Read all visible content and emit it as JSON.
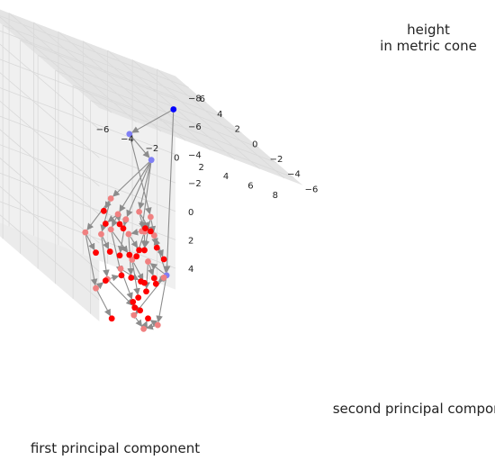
{
  "chart_data": {
    "type": "scatter",
    "projection": "3d",
    "title": "",
    "xlabel": "first principal component",
    "ylabel": "second principal component",
    "zlabel_lines": [
      "height",
      "in metric cone"
    ],
    "xlim": [
      -7,
      9.5
    ],
    "ylim": [
      -7,
      7.5
    ],
    "zlim": [
      5.5,
      -9.5
    ],
    "xticks": [
      -6,
      -4,
      -2,
      0,
      2,
      4,
      6,
      8
    ],
    "yticks": [
      -6,
      -4,
      -2,
      0,
      2,
      4,
      6
    ],
    "zticks": [
      -8,
      -6,
      -4,
      -2,
      0,
      2,
      4
    ],
    "grid": true,
    "colors": {
      "level_top": "#0000ff",
      "level_high": "#7f7ff5",
      "level_mid": "#f08080",
      "level_low": "#ff0000",
      "arrow": "#8c8c8c",
      "pane": "#f2f2f2",
      "grid": "#d9d9d9"
    },
    "nodes": [
      {
        "id": "n0",
        "x": 7.2,
        "y": 4.5,
        "z": -8.0,
        "level": "top"
      },
      {
        "id": "n1",
        "x": -1.0,
        "y": -2.0,
        "z": -7.0,
        "level": "high"
      },
      {
        "id": "n2",
        "x": -1.0,
        "y": -4.5,
        "z": -6.5,
        "level": "high"
      },
      {
        "id": "n3",
        "x": 7.0,
        "y": 5.0,
        "z": 4.0,
        "level": "high"
      },
      {
        "id": "n4",
        "x": -5.0,
        "y": -5.5,
        "z": -3.0,
        "level": "mid"
      },
      {
        "id": "n5",
        "x": -3.0,
        "y": -3.5,
        "z": -1.5,
        "level": "mid"
      },
      {
        "id": "n6",
        "x": -2.0,
        "y": -3.0,
        "z": -1.2,
        "level": "mid"
      },
      {
        "id": "n7",
        "x": 0.0,
        "y": -2.0,
        "z": -0.5,
        "level": "mid"
      },
      {
        "id": "n8",
        "x": 0.5,
        "y": -1.0,
        "z": -1.5,
        "level": "mid"
      },
      {
        "id": "n9",
        "x": 2.5,
        "y": 0.5,
        "z": -1.0,
        "level": "mid"
      },
      {
        "id": "n10",
        "x": -6.0,
        "y": -4.0,
        "z": 0.5,
        "level": "mid"
      },
      {
        "id": "n11",
        "x": -4.0,
        "y": -3.0,
        "z": 0.5,
        "level": "mid"
      },
      {
        "id": "n12",
        "x": -2.5,
        "y": -2.0,
        "z": 0.2,
        "level": "mid"
      },
      {
        "id": "n13",
        "x": 0.0,
        "y": -0.5,
        "z": 0.5,
        "level": "mid"
      },
      {
        "id": "n14",
        "x": 2.0,
        "y": 0.5,
        "z": 0.2,
        "level": "mid"
      },
      {
        "id": "n15",
        "x": 3.5,
        "y": 1.5,
        "z": 0.5,
        "level": "mid"
      },
      {
        "id": "n16",
        "x": -5.5,
        "y": -4.5,
        "z": 4.0,
        "level": "mid"
      },
      {
        "id": "n17",
        "x": -3.5,
        "y": -3.0,
        "z": 3.5,
        "level": "mid"
      },
      {
        "id": "n18",
        "x": -1.0,
        "y": -1.0,
        "z": 3.0,
        "level": "mid"
      },
      {
        "id": "n19",
        "x": 1.0,
        "y": 0.5,
        "z": 2.5,
        "level": "mid"
      },
      {
        "id": "n20",
        "x": 3.0,
        "y": 1.5,
        "z": 2.5,
        "level": "mid"
      },
      {
        "id": "n21",
        "x": 5.0,
        "y": 2.5,
        "z": 3.5,
        "level": "mid"
      },
      {
        "id": "n22",
        "x": 1.5,
        "y": 1.0,
        "z": 6.5,
        "level": "mid"
      },
      {
        "id": "n23",
        "x": 4.5,
        "y": 2.5,
        "z": 7.0,
        "level": "mid"
      },
      {
        "id": "n24",
        "x": 3.0,
        "y": 2.0,
        "z": 7.5,
        "level": "mid"
      },
      {
        "id": "n25",
        "x": -4.5,
        "y": -4.0,
        "z": -1.5,
        "level": "low"
      },
      {
        "id": "n26",
        "x": -4.0,
        "y": -3.5,
        "z": -0.5,
        "level": "low"
      },
      {
        "id": "n27",
        "x": -2.5,
        "y": -3.0,
        "z": -0.7,
        "level": "low"
      },
      {
        "id": "n28",
        "x": -1.5,
        "y": -2.0,
        "z": -0.2,
        "level": "low"
      },
      {
        "id": "n29",
        "x": 1.0,
        "y": -1.0,
        "z": -0.5,
        "level": "low"
      },
      {
        "id": "n30",
        "x": 2.0,
        "y": -0.2,
        "z": -0.2,
        "level": "low"
      },
      {
        "id": "n31",
        "x": -5.5,
        "y": -4.5,
        "z": 1.5,
        "level": "low"
      },
      {
        "id": "n32",
        "x": -4.0,
        "y": -4.0,
        "z": 1.2,
        "level": "low"
      },
      {
        "id": "n33",
        "x": -2.5,
        "y": -3.0,
        "z": 1.5,
        "level": "low"
      },
      {
        "id": "n34",
        "x": -1.0,
        "y": -2.0,
        "z": 1.5,
        "level": "low"
      },
      {
        "id": "n35",
        "x": 0.5,
        "y": -1.0,
        "z": 1.2,
        "level": "low"
      },
      {
        "id": "n36",
        "x": 2.0,
        "y": 0.5,
        "z": 1.5,
        "level": "low"
      },
      {
        "id": "n37",
        "x": 3.5,
        "y": 1.2,
        "z": 1.2,
        "level": "low"
      },
      {
        "id": "n38",
        "x": 4.5,
        "y": 1.8,
        "z": 2.0,
        "level": "low"
      },
      {
        "id": "n39",
        "x": 1.0,
        "y": 0.0,
        "z": 2.0,
        "level": "low"
      },
      {
        "id": "n40",
        "x": -4.0,
        "y": -3.5,
        "z": 3.5,
        "level": "low"
      },
      {
        "id": "n41",
        "x": -2.0,
        "y": -2.5,
        "z": 3.0,
        "level": "low"
      },
      {
        "id": "n42",
        "x": -0.5,
        "y": -1.5,
        "z": 3.2,
        "level": "low"
      },
      {
        "id": "n43",
        "x": 1.0,
        "y": -0.5,
        "z": 3.5,
        "level": "low"
      },
      {
        "id": "n44",
        "x": 2.0,
        "y": 0.5,
        "z": 3.8,
        "level": "low"
      },
      {
        "id": "n45",
        "x": 3.5,
        "y": 1.5,
        "z": 3.5,
        "level": "low"
      },
      {
        "id": "n46",
        "x": 4.0,
        "y": 2.0,
        "z": 4.0,
        "level": "low"
      },
      {
        "id": "n47",
        "x": -3.5,
        "y": -3.5,
        "z": 6.0,
        "level": "low"
      },
      {
        "id": "n48",
        "x": 0.5,
        "y": -0.5,
        "z": 5.5,
        "level": "low"
      },
      {
        "id": "n49",
        "x": 2.5,
        "y": 1.0,
        "z": 4.5,
        "level": "low"
      },
      {
        "id": "n50",
        "x": 1.5,
        "y": 0.5,
        "z": 5.0,
        "level": "low"
      },
      {
        "id": "n51",
        "x": 2.0,
        "y": 1.0,
        "z": 6.0,
        "level": "low"
      },
      {
        "id": "n52",
        "x": 3.0,
        "y": 1.5,
        "z": 6.5,
        "level": "low"
      },
      {
        "id": "n53",
        "x": 0.0,
        "y": -1.0,
        "z": 5.0,
        "level": "low"
      }
    ],
    "edges": [
      [
        "n0",
        "n1"
      ],
      [
        "n0",
        "n3"
      ],
      [
        "n1",
        "n2"
      ],
      [
        "n1",
        "n9"
      ],
      [
        "n2",
        "n4"
      ],
      [
        "n2",
        "n6"
      ],
      [
        "n2",
        "n7"
      ],
      [
        "n2",
        "n8"
      ],
      [
        "n2",
        "n5"
      ],
      [
        "n3",
        "n15"
      ],
      [
        "n3",
        "n23"
      ],
      [
        "n4",
        "n10"
      ],
      [
        "n4",
        "n11"
      ],
      [
        "n4",
        "n25"
      ],
      [
        "n5",
        "n12"
      ],
      [
        "n5",
        "n26"
      ],
      [
        "n5",
        "n27"
      ],
      [
        "n6",
        "n28"
      ],
      [
        "n6",
        "n33"
      ],
      [
        "n7",
        "n13"
      ],
      [
        "n7",
        "n29"
      ],
      [
        "n8",
        "n30"
      ],
      [
        "n8",
        "n14"
      ],
      [
        "n9",
        "n15"
      ],
      [
        "n9",
        "n36"
      ],
      [
        "n10",
        "n31"
      ],
      [
        "n10",
        "n16"
      ],
      [
        "n11",
        "n32"
      ],
      [
        "n11",
        "n17"
      ],
      [
        "n12",
        "n34"
      ],
      [
        "n12",
        "n41"
      ],
      [
        "n13",
        "n35"
      ],
      [
        "n13",
        "n42"
      ],
      [
        "n14",
        "n36"
      ],
      [
        "n14",
        "n39"
      ],
      [
        "n15",
        "n37"
      ],
      [
        "n15",
        "n38"
      ],
      [
        "n16",
        "n40"
      ],
      [
        "n16",
        "n47"
      ],
      [
        "n17",
        "n41"
      ],
      [
        "n17",
        "n48"
      ],
      [
        "n18",
        "n43"
      ],
      [
        "n18",
        "n53"
      ],
      [
        "n19",
        "n44"
      ],
      [
        "n19",
        "n50"
      ],
      [
        "n20",
        "n45"
      ],
      [
        "n20",
        "n49"
      ],
      [
        "n21",
        "n46"
      ],
      [
        "n21",
        "n22"
      ],
      [
        "n22",
        "n51"
      ],
      [
        "n22",
        "n24"
      ],
      [
        "n23",
        "n52"
      ],
      [
        "n23",
        "n24"
      ],
      [
        "n24",
        "n52"
      ],
      [
        "n3",
        "n20"
      ],
      [
        "n3",
        "n21"
      ]
    ]
  }
}
